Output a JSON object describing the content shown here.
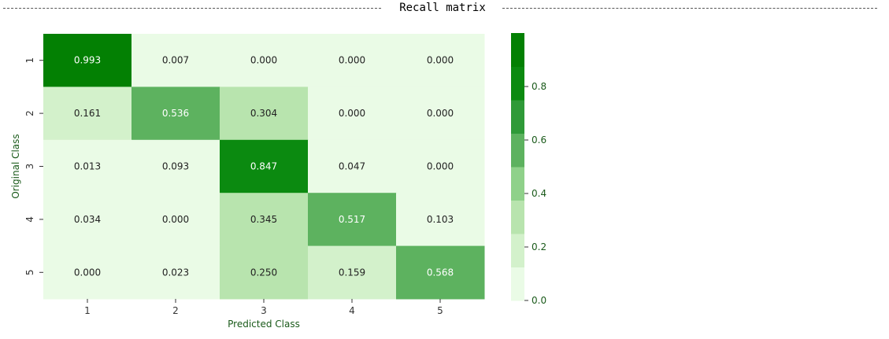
{
  "page": {
    "title": "Recall matrix"
  },
  "chart_data": {
    "type": "heatmap",
    "title": "Recall matrix",
    "xlabel": "Predicted Class",
    "ylabel": "Original Class",
    "x_categories": [
      "1",
      "2",
      "3",
      "4",
      "5"
    ],
    "y_categories": [
      "1",
      "2",
      "3",
      "4",
      "5"
    ],
    "values": [
      [
        0.993,
        0.007,
        0.0,
        0.0,
        0.0
      ],
      [
        0.161,
        0.536,
        0.304,
        0.0,
        0.0
      ],
      [
        0.013,
        0.093,
        0.847,
        0.047,
        0.0
      ],
      [
        0.034,
        0.0,
        0.345,
        0.517,
        0.103
      ],
      [
        0.0,
        0.023,
        0.25,
        0.159,
        0.568
      ]
    ],
    "value_labels": [
      [
        "0.993",
        "0.007",
        "0.000",
        "0.000",
        "0.000"
      ],
      [
        "0.161",
        "0.536",
        "0.304",
        "0.000",
        "0.000"
      ],
      [
        "0.013",
        "0.093",
        "0.847",
        "0.047",
        "0.000"
      ],
      [
        "0.034",
        "0.000",
        "0.345",
        "0.517",
        "0.103"
      ],
      [
        "0.000",
        "0.023",
        "0.250",
        "0.159",
        "0.568"
      ]
    ],
    "colorbar": {
      "range": [
        0,
        1
      ],
      "ticks": [
        "0.0",
        "0.2",
        "0.4",
        "0.6",
        "0.8"
      ],
      "tick_values": [
        0,
        0.2,
        0.4,
        0.6,
        0.8
      ],
      "colors": [
        "#eafbe6",
        "#d3f1cb",
        "#b8e4ae",
        "#8fd18a",
        "#5db25f",
        "#2f9a38",
        "#0b8a10",
        "#038003"
      ]
    }
  }
}
